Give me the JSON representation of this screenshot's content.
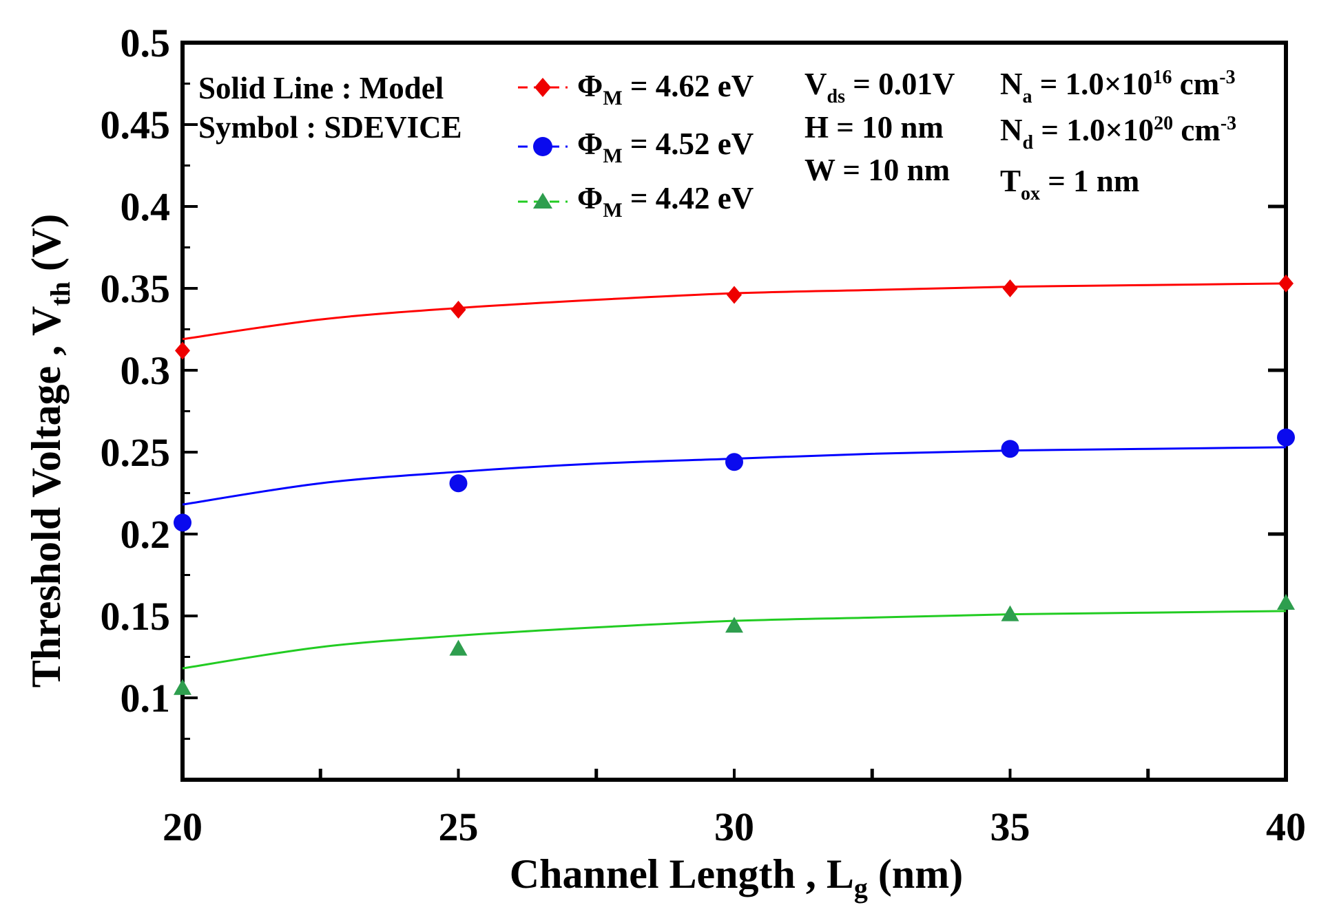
{
  "chart_data": {
    "type": "line",
    "title": "",
    "xlabel": {
      "main": "Channel Length , L",
      "sub": "g",
      "tail": " (nm)"
    },
    "ylabel": {
      "main": "Threshold Voltage , V",
      "sub": "th",
      "tail": " (V)"
    },
    "xlim": [
      20,
      40
    ],
    "ylim": [
      0.05,
      0.5
    ],
    "x_ticks": [
      20,
      25,
      30,
      35,
      40
    ],
    "x_tick_labels": [
      "20",
      "25",
      "30",
      "35",
      "40"
    ],
    "y_ticks": [
      0.1,
      0.15,
      0.2,
      0.25,
      0.3,
      0.35,
      0.4,
      0.45,
      0.5
    ],
    "y_tick_labels": [
      "0.1",
      "0.15",
      "0.2",
      "0.25",
      "0.3",
      "0.35",
      "0.4",
      "0.45",
      "0.5"
    ],
    "annotations": {
      "method_notes": [
        "Solid Line : Model",
        "Symbol : SDEVICE"
      ],
      "params": {
        "vds": {
          "main": "V",
          "sub": "ds",
          "tail": " =  0.01V"
        },
        "h": "H  = 10 nm",
        "w": "W = 10 nm",
        "na": {
          "main": "N",
          "sub": "a",
          "mid": " = 1.0×10",
          "sup": "16",
          "tail": " cm",
          "tailsup": "-3"
        },
        "nd": {
          "main": "N",
          "sub": "d",
          "mid": " = 1.0×10",
          "sup": "20",
          "tail": " cm",
          "tailsup": "-3"
        },
        "tox": {
          "main": "T",
          "sub": "ox",
          "tail": " = 1 nm"
        }
      }
    },
    "series": [
      {
        "name": "ΦM = 4.62 eV",
        "legend": {
          "phi": "Φ",
          "sub": "M",
          "tail": " =  4.62 eV"
        },
        "color": "#ff0000",
        "marker_color": "#ee0000",
        "marker": "diamond",
        "symbol_x": [
          20,
          25,
          30,
          35,
          40
        ],
        "symbol_y": [
          0.312,
          0.337,
          0.346,
          0.35,
          0.353
        ],
        "model_x": [
          20,
          22.5,
          25,
          27.5,
          30,
          32.5,
          35,
          37.5,
          40
        ],
        "model_y": [
          0.319,
          0.331,
          0.338,
          0.343,
          0.347,
          0.349,
          0.351,
          0.352,
          0.353
        ]
      },
      {
        "name": "ΦM = 4.52 eV",
        "legend": {
          "phi": "Φ",
          "sub": "M",
          "tail": " =  4.52 eV"
        },
        "color": "#0000ff",
        "marker_color": "#0a0aee",
        "marker": "circle",
        "symbol_x": [
          20,
          25,
          30,
          35,
          40
        ],
        "symbol_y": [
          0.207,
          0.231,
          0.244,
          0.252,
          0.259
        ],
        "model_x": [
          20,
          22.5,
          25,
          27.5,
          30,
          32.5,
          35,
          37.5,
          40
        ],
        "model_y": [
          0.218,
          0.231,
          0.238,
          0.243,
          0.246,
          0.249,
          0.251,
          0.252,
          0.253
        ]
      },
      {
        "name": "ΦM = 4.42 eV",
        "legend": {
          "phi": "Φ",
          "sub": "M",
          "tail": " =  4.42 eV"
        },
        "color": "#22cc22",
        "marker_color": "#2e9e4e",
        "marker": "triangle",
        "symbol_x": [
          20,
          25,
          30,
          35,
          40
        ],
        "symbol_y": [
          0.106,
          0.13,
          0.144,
          0.151,
          0.158
        ],
        "model_x": [
          20,
          22.5,
          25,
          27.5,
          30,
          32.5,
          35,
          37.5,
          40
        ],
        "model_y": [
          0.118,
          0.131,
          0.138,
          0.143,
          0.147,
          0.149,
          0.151,
          0.152,
          0.153
        ]
      }
    ]
  }
}
